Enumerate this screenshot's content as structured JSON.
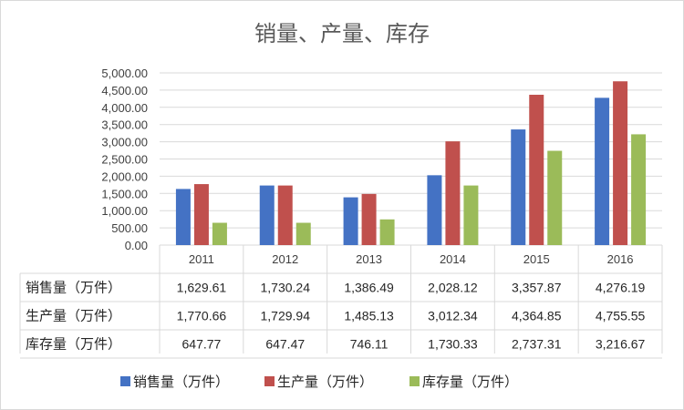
{
  "chart_data": {
    "type": "bar",
    "title": "销量、产量、库存",
    "categories": [
      "2011",
      "2012",
      "2013",
      "2014",
      "2015",
      "2016"
    ],
    "ylim": [
      0,
      5000
    ],
    "y_ticks": [
      "0.00",
      "500.00",
      "1,000.00",
      "1,500.00",
      "2,000.00",
      "2,500.00",
      "3,000.00",
      "3,500.00",
      "4,000.00",
      "4,500.00",
      "5,000.00"
    ],
    "grid": true,
    "legend_position": "bottom",
    "series": [
      {
        "name": "销售量（万件）",
        "color": "#4472c4",
        "values": [
          1629.61,
          1730.24,
          1386.49,
          2028.12,
          3357.87,
          4276.19
        ],
        "labels": [
          "1,629.61",
          "1,730.24",
          "1,386.49",
          "2,028.12",
          "3,357.87",
          "4,276.19"
        ]
      },
      {
        "name": "生产量（万件）",
        "color": "#c0504d",
        "values": [
          1770.66,
          1729.94,
          1485.13,
          3012.34,
          4364.85,
          4755.55
        ],
        "labels": [
          "1,770.66",
          "1,729.94",
          "1,485.13",
          "3,012.34",
          "4,364.85",
          "4,755.55"
        ]
      },
      {
        "name": "库存量（万件）",
        "color": "#9bbb59",
        "values": [
          647.77,
          647.47,
          746.11,
          1730.33,
          2737.31,
          3216.67
        ],
        "labels": [
          "647.77",
          "647.47",
          "746.11",
          "1,730.33",
          "2,737.31",
          "3,216.67"
        ]
      }
    ]
  }
}
